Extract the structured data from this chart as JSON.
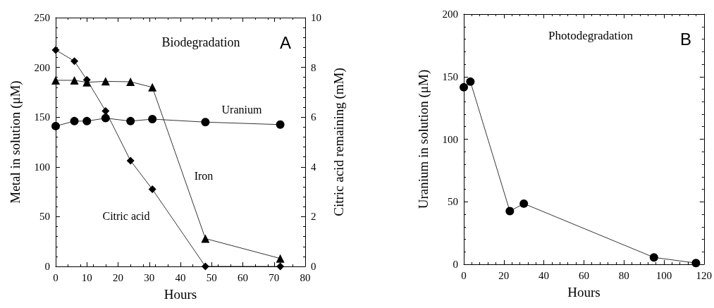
{
  "chart_data": [
    {
      "type": "line",
      "xlabel": "Hours",
      "ylabel": "Metal in solution (μM)",
      "y2label": "Citric acid remaining (mM)",
      "annotations": [
        "Biodegradation",
        "A"
      ],
      "xlim": [
        0,
        80
      ],
      "xticks": [
        0,
        10,
        20,
        30,
        40,
        50,
        60,
        70,
        80
      ],
      "ylim": [
        0,
        250
      ],
      "yticks": [
        0,
        50,
        100,
        150,
        200,
        250
      ],
      "y2lim": [
        0,
        10
      ],
      "y2ticks": [
        0,
        2,
        4,
        6,
        8,
        10
      ],
      "grid": false,
      "legend": false,
      "series": [
        {
          "name": "Uranium",
          "color": "#000000",
          "marker": "circle",
          "x": [
            0,
            6,
            10,
            16,
            24,
            31,
            48,
            72
          ],
          "values": [
            141,
            146,
            146,
            149,
            146,
            148,
            145,
            142.5
          ]
        },
        {
          "name": "Iron",
          "color": "#000000",
          "marker": "triangle",
          "x": [
            0,
            6,
            10,
            16,
            24,
            31,
            48,
            72
          ],
          "values": [
            187,
            187,
            185,
            186,
            185.5,
            180,
            28,
            8
          ]
        },
        {
          "name": "Citric acid",
          "color": "#000000",
          "marker": "diamond",
          "axis": "y2",
          "x": [
            0,
            6,
            10,
            16,
            24,
            31,
            48,
            72
          ],
          "values": [
            8.7,
            8.25,
            7.5,
            6.25,
            4.25,
            3.1,
            0,
            0
          ]
        }
      ]
    },
    {
      "type": "line",
      "xlabel": "Hours",
      "ylabel": "Uranium in solution (μM)",
      "annotations": [
        "Photodegradation",
        "B"
      ],
      "xlim": [
        0,
        120
      ],
      "xticks": [
        0,
        20,
        40,
        60,
        80,
        100,
        120
      ],
      "ylim": [
        0,
        200
      ],
      "yticks": [
        0,
        50,
        100,
        150,
        200
      ],
      "grid": false,
      "legend": false,
      "series": [
        {
          "color": "#000000",
          "marker": "circle",
          "x": [
            0,
            3.3,
            23,
            30,
            95,
            116
          ],
          "values": [
            141.5,
            146,
            42.5,
            48.5,
            5.5,
            1
          ]
        }
      ]
    }
  ]
}
